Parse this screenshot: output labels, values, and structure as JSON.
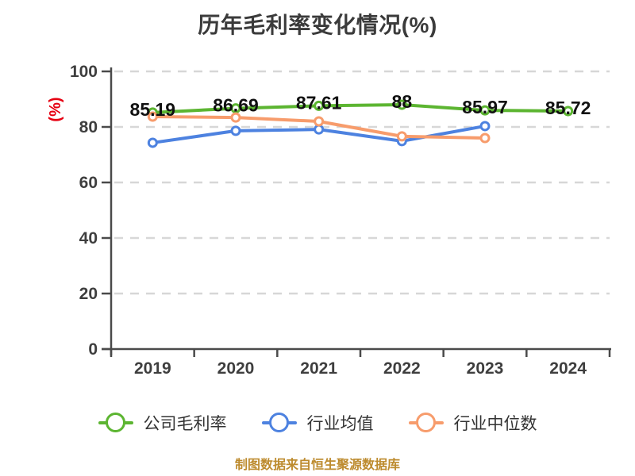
{
  "title": "历年毛利率变化情况(%)",
  "footer": "制图数据来自恒生聚源数据库",
  "chart_data": {
    "type": "line",
    "categories": [
      "2019",
      "2020",
      "2021",
      "2022",
      "2023",
      "2024"
    ],
    "series": [
      {
        "name": "公司毛利率",
        "color": "#5cb531",
        "values": [
          85.19,
          86.69,
          87.61,
          88,
          85.97,
          85.72
        ],
        "labels": [
          "85.19",
          "86.69",
          "87.61",
          "88",
          "85.97",
          "85.72"
        ]
      },
      {
        "name": "行业均值",
        "color": "#4d82e0",
        "values": [
          74.3,
          78.6,
          79.1,
          74.9,
          80.3
        ]
      },
      {
        "name": "行业中位数",
        "color": "#f79c6c",
        "values": [
          83.7,
          83.4,
          82.0,
          76.6,
          76.0
        ]
      }
    ],
    "ylabel": "(%)",
    "ylabel_color": "#e60012",
    "ylim": [
      0,
      100
    ],
    "yticks": [
      0,
      20,
      40,
      60,
      80,
      100
    ],
    "grid": "horizontal dashed",
    "legend_position": "bottom",
    "axis_color": "#4a4a4a",
    "grid_color": "#d7d7d7",
    "tick_label_color": "#3e3e3e",
    "data_label_color": "#111111"
  }
}
